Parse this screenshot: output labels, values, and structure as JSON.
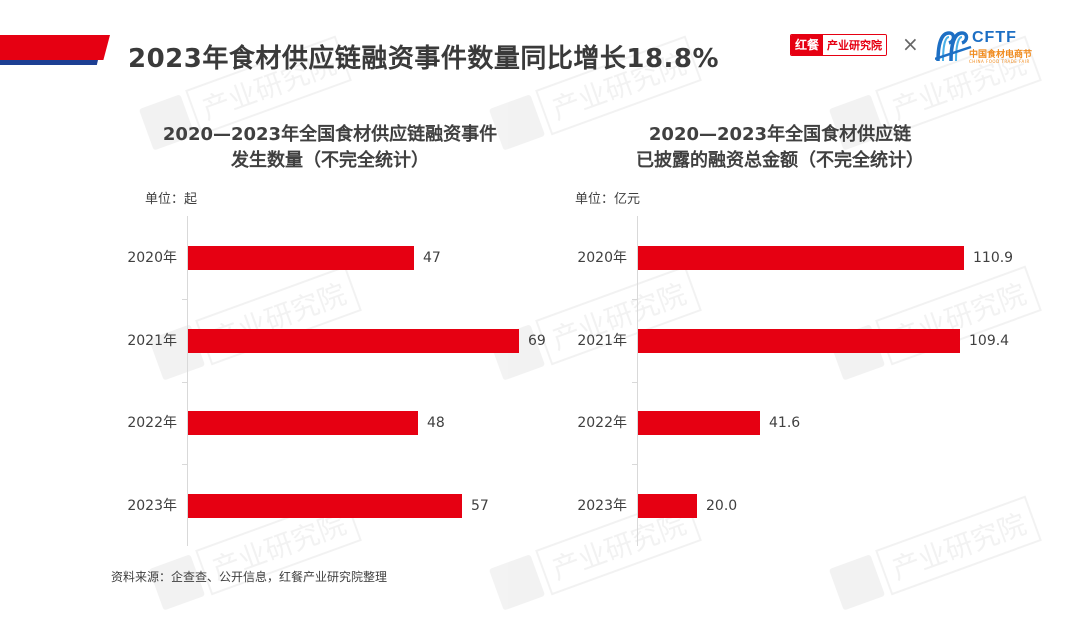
{
  "header": {
    "title": "2023年食材供应链融资事件数量同比增长18.8%",
    "accent_red": "#e60012",
    "accent_blue": "#1d3f93"
  },
  "logos": {
    "hongcan": {
      "red_part": "红餐",
      "white_part": "产业研究院"
    },
    "separator": "×",
    "cftf": {
      "name": "CFTF",
      "cn": "中国食材电商节",
      "en": "CHINA FOOD TRADE FAIR"
    }
  },
  "watermark": {
    "text": "产业研究院"
  },
  "left_chart": {
    "title_line1": "2020—2023年全国食材供应链融资事件",
    "title_line2": "发生数量（不完全统计）",
    "unit": "单位：起"
  },
  "right_chart": {
    "title_line1": "2020—2023年全国食材供应链",
    "title_line2": "已披露的融资总金额（不完全统计）",
    "unit": "单位：亿元"
  },
  "source": "资料来源：企查查、公开信息，红餐产业研究院整理",
  "chart_data": [
    {
      "type": "bar",
      "orientation": "horizontal",
      "title": "2020—2023年全国食材供应链融资事件发生数量（不完全统计）",
      "unit": "起",
      "categories": [
        "2020年",
        "2021年",
        "2022年",
        "2023年"
      ],
      "values": [
        47,
        69,
        48,
        57
      ],
      "value_labels": [
        "47",
        "69",
        "48",
        "57"
      ],
      "color": "#e60012",
      "xlabel": "",
      "ylabel": "",
      "grid": false,
      "legend": null
    },
    {
      "type": "bar",
      "orientation": "horizontal",
      "title": "2020—2023年全国食材供应链已披露的融资总金额（不完全统计）",
      "unit": "亿元",
      "categories": [
        "2020年",
        "2021年",
        "2022年",
        "2023年"
      ],
      "values": [
        110.9,
        109.4,
        41.6,
        20.0
      ],
      "value_labels": [
        "110.9",
        "109.4",
        "41.6",
        "20.0"
      ],
      "color": "#e60012",
      "xlabel": "",
      "ylabel": "",
      "grid": false,
      "legend": null
    }
  ]
}
